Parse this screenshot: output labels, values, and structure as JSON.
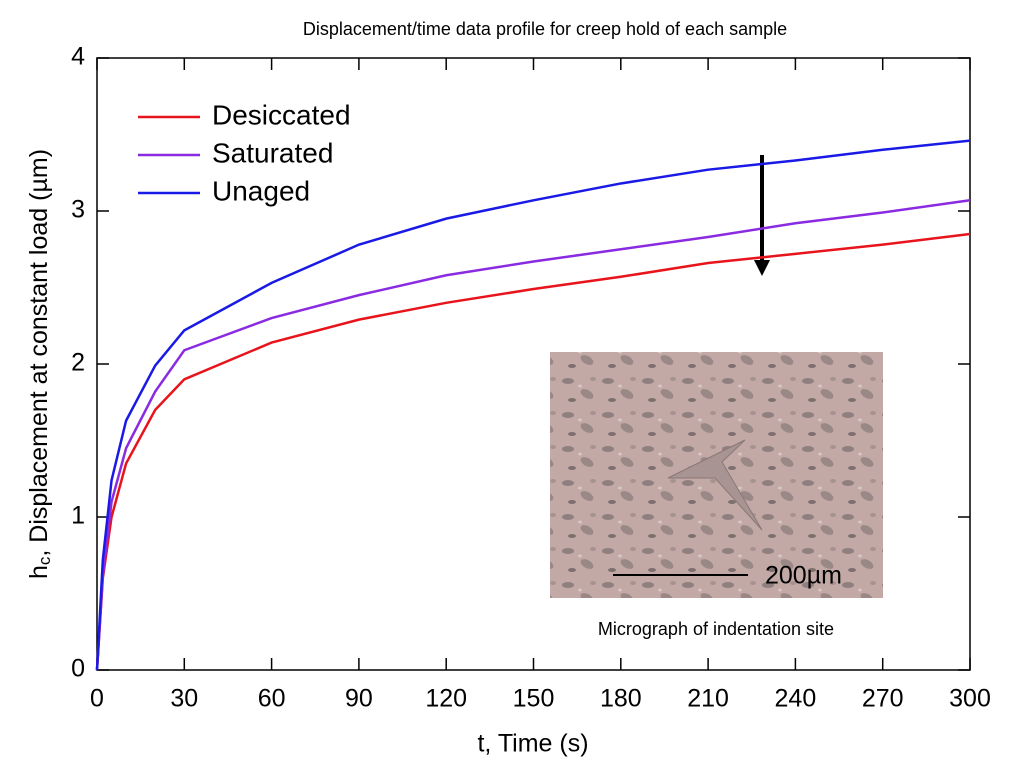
{
  "chart_data": {
    "type": "line",
    "title": "Displacement/time data profile for creep hold of each sample",
    "xlabel": "t, Time (s)",
    "ylabel": {
      "symbol": "h",
      "subscript": "c",
      "text": ", Displacement at constant load (µm)"
    },
    "x": [
      0,
      2,
      5,
      10,
      20,
      30,
      60,
      90,
      120,
      150,
      180,
      210,
      240,
      270,
      300
    ],
    "series": [
      {
        "name": "Desiccated",
        "color": "#e8141c",
        "values": [
          0,
          0.6,
          1.0,
          1.35,
          1.7,
          1.9,
          2.14,
          2.29,
          2.4,
          2.49,
          2.57,
          2.66,
          2.72,
          2.78,
          2.85
        ]
      },
      {
        "name": "Saturated",
        "color": "#8a2be2",
        "values": [
          0,
          0.62,
          1.1,
          1.45,
          1.82,
          2.09,
          2.3,
          2.45,
          2.58,
          2.67,
          2.75,
          2.83,
          2.92,
          2.99,
          3.07
        ]
      },
      {
        "name": "Unaged",
        "color": "#1a1ae6",
        "values": [
          0,
          0.72,
          1.24,
          1.63,
          1.99,
          2.22,
          2.53,
          2.78,
          2.95,
          3.07,
          3.18,
          3.27,
          3.33,
          3.4,
          3.46
        ]
      }
    ],
    "xlim": [
      0,
      300
    ],
    "xticks": [
      0,
      30,
      60,
      90,
      120,
      150,
      180,
      210,
      240,
      270,
      300
    ],
    "ylim": [
      0,
      4
    ],
    "yticks": [
      0,
      1,
      2,
      3,
      4
    ],
    "legend": "upper left",
    "annotations": {
      "scale_bar": "200µm",
      "inset_caption": "Micrograph of indentation site"
    }
  }
}
